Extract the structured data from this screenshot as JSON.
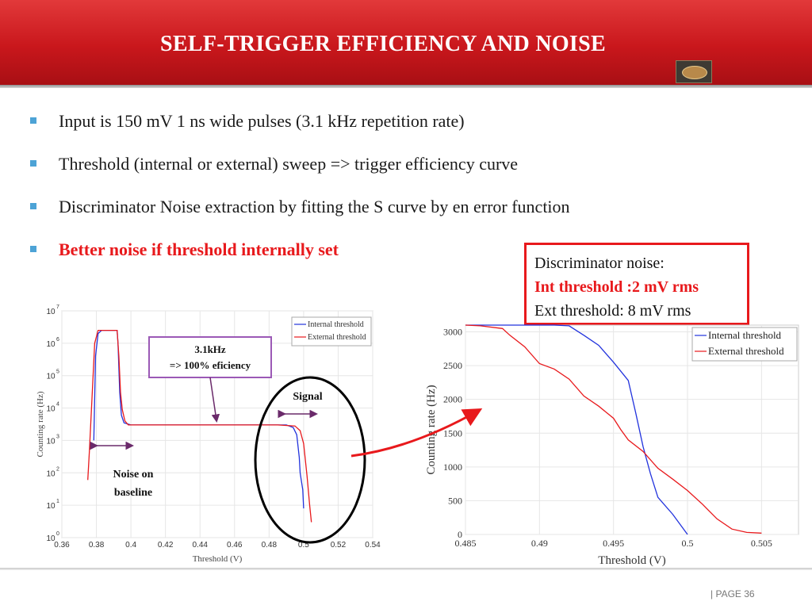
{
  "header": {
    "title": "SELF-TRIGGER EFFICIENCY AND NOISE"
  },
  "bullets": [
    {
      "text": "Input is 150 mV 1 ns wide pulses (3.1 kHz repetition rate)",
      "highlight": false
    },
    {
      "text": "Threshold  (internal or external) sweep => trigger efficiency curve",
      "highlight": false
    },
    {
      "text": "Discriminator Noise extraction by fitting the S curve by en error function",
      "highlight": false
    },
    {
      "text": "Better noise if  threshold internally set",
      "highlight": true
    }
  ],
  "noise_box": {
    "line1": "Discriminator noise:",
    "line2": "Int threshold :2 mV rms",
    "line3": "Ext threshold: 8 mV rms"
  },
  "annotations": {
    "efficiency_line1": "3.1kHz",
    "efficiency_line2": "=> 100% eficiency",
    "signal": "Signal",
    "noise_line1": "Noise on",
    "noise_line2": "baseline"
  },
  "footer": {
    "page": "|  PAGE 36"
  },
  "colors": {
    "header_red": "#c9171c",
    "internal": "#2233dd",
    "external": "#e8191c",
    "bullet": "#4da3d6",
    "callout_border": "#9b59b6"
  },
  "chart_data": [
    {
      "type": "line",
      "xlabel": "Threshold (V)",
      "ylabel": "Counting rate (Hz)",
      "xlim": [
        0.36,
        0.54
      ],
      "ylim": [
        1,
        10000000
      ],
      "yscale": "log",
      "x_ticks": [
        "0.36",
        "0.38",
        "0.4",
        "0.42",
        "0.44",
        "0.46",
        "0.48",
        "0.5",
        "0.52",
        "0.54"
      ],
      "y_tick_bases": [
        "10",
        "10",
        "10",
        "10",
        "10",
        "10",
        "10",
        "10"
      ],
      "y_tick_exps": [
        "0",
        "1",
        "2",
        "3",
        "4",
        "5",
        "6",
        "7"
      ],
      "grid": true,
      "legend": "top-right",
      "series": [
        {
          "name": "Internal threshold",
          "x": [
            0.3785,
            0.3795,
            0.381,
            0.383,
            0.392,
            0.3925,
            0.3935,
            0.3945,
            0.396,
            0.4,
            0.45,
            0.482,
            0.49,
            0.494,
            0.496,
            0.4975,
            0.498,
            0.4995,
            0.5
          ],
          "y": [
            1000,
            400000,
            2000000,
            2500000,
            2500000,
            1000000,
            30000,
            6000,
            3500,
            3000,
            3000,
            3000,
            3000,
            2500,
            1500,
            300,
            100,
            30,
            8
          ]
        },
        {
          "name": "External threshold",
          "x": [
            0.375,
            0.376,
            0.379,
            0.381,
            0.388,
            0.392,
            0.393,
            0.394,
            0.395,
            0.3965,
            0.3985,
            0.4,
            0.45,
            0.485,
            0.495,
            0.498,
            0.5,
            0.502,
            0.5035,
            0.5045
          ],
          "y": [
            60,
            500,
            1000000,
            2500000,
            2500000,
            2500000,
            400000,
            30000,
            9000,
            4000,
            3000,
            3000,
            3000,
            3000,
            2800,
            2000,
            800,
            80,
            10,
            3
          ]
        }
      ]
    },
    {
      "type": "line",
      "xlabel": "Threshold (V)",
      "ylabel": "Counting rate (Hz)",
      "xlim": [
        0.485,
        0.5075
      ],
      "ylim": [
        0,
        3100
      ],
      "x_ticks": [
        "0.485",
        "0.49",
        "0.495",
        "0.5",
        "0.505"
      ],
      "y_ticks": [
        "0",
        "500",
        "1000",
        "1500",
        "2000",
        "2500",
        "3000"
      ],
      "grid": true,
      "legend": "top-right",
      "series": [
        {
          "name": "Internal threshold",
          "x": [
            0.485,
            0.486,
            0.488,
            0.49,
            0.491,
            0.492,
            0.493,
            0.494,
            0.495,
            0.496,
            0.4965,
            0.497,
            0.4975,
            0.498,
            0.499,
            0.5
          ],
          "y": [
            3100,
            3100,
            3100,
            3100,
            3100,
            3090,
            2950,
            2800,
            2550,
            2280,
            1800,
            1300,
            900,
            550,
            300,
            0
          ]
        },
        {
          "name": "External threshold",
          "x": [
            0.485,
            0.486,
            0.4875,
            0.488,
            0.489,
            0.49,
            0.491,
            0.492,
            0.493,
            0.494,
            0.495,
            0.4955,
            0.496,
            0.497,
            0.498,
            0.499,
            0.5,
            0.501,
            0.502,
            0.503,
            0.504,
            0.505
          ],
          "y": [
            3100,
            3090,
            3050,
            2950,
            2780,
            2530,
            2450,
            2300,
            2050,
            1900,
            1720,
            1550,
            1400,
            1230,
            980,
            820,
            650,
            450,
            230,
            80,
            30,
            20
          ]
        }
      ]
    }
  ]
}
